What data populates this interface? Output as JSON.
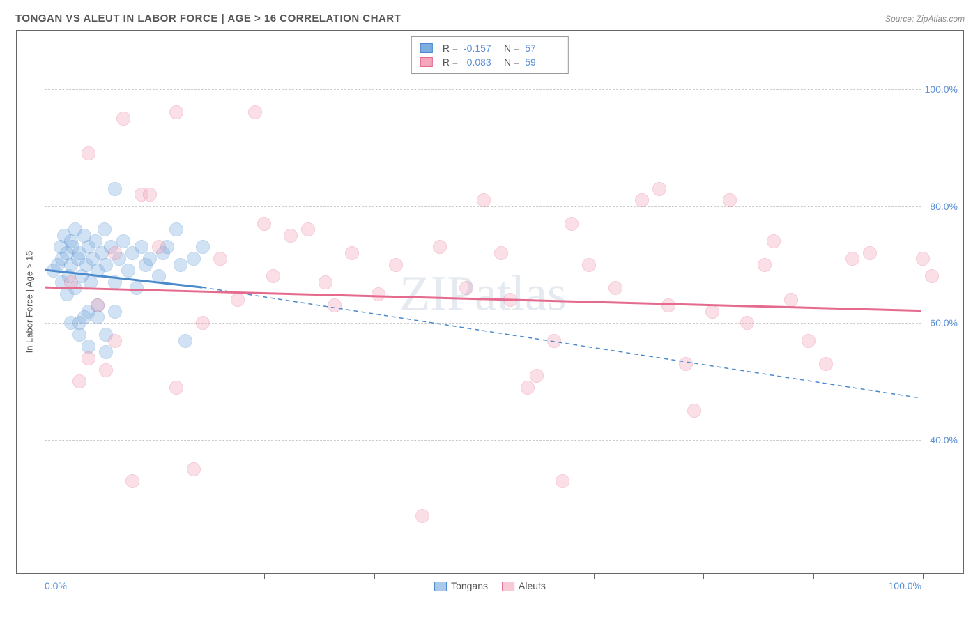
{
  "header": {
    "title": "TONGAN VS ALEUT IN LABOR FORCE | AGE > 16 CORRELATION CHART",
    "source": "Source: ZipAtlas.com"
  },
  "watermark": "ZIPatlas",
  "chart": {
    "type": "scatter",
    "y_axis_title": "In Labor Force | Age > 16",
    "xlim": [
      0,
      100
    ],
    "ylim": [
      20,
      110
    ],
    "x_labels": {
      "min": "0.0%",
      "max": "100.0%"
    },
    "y_ticks": [
      {
        "value": 40,
        "label": "40.0%"
      },
      {
        "value": 60,
        "label": "60.0%"
      },
      {
        "value": 80,
        "label": "80.0%"
      },
      {
        "value": 100,
        "label": "100.0%"
      }
    ],
    "x_tick_positions": [
      0,
      12.5,
      25,
      37.5,
      50,
      62.5,
      75,
      87.5,
      100
    ],
    "grid_color": "#cccccc",
    "background_color": "#ffffff",
    "marker_radius": 10,
    "marker_opacity": 0.35,
    "series": [
      {
        "name": "Tongans",
        "color": "#7eaee0",
        "border_color": "#4a89ca",
        "R": "-0.157",
        "N": "57",
        "trend_solid": {
          "x1": 0,
          "y1": 69,
          "x2": 18,
          "y2": 66
        },
        "trend_dashed": {
          "x1": 18,
          "y1": 66,
          "x2": 100,
          "y2": 47
        },
        "points": [
          [
            1,
            69
          ],
          [
            1.5,
            70
          ],
          [
            1.8,
            73
          ],
          [
            2,
            67
          ],
          [
            2,
            71
          ],
          [
            2.2,
            75
          ],
          [
            2.5,
            65
          ],
          [
            2.5,
            72
          ],
          [
            2.8,
            68
          ],
          [
            3,
            74
          ],
          [
            3,
            70
          ],
          [
            3.2,
            73
          ],
          [
            3.5,
            66
          ],
          [
            3.5,
            76
          ],
          [
            3.8,
            71
          ],
          [
            4,
            60
          ],
          [
            4,
            72
          ],
          [
            4.2,
            68
          ],
          [
            4.5,
            75
          ],
          [
            4.8,
            70
          ],
          [
            5,
            62
          ],
          [
            5,
            73
          ],
          [
            5.2,
            67
          ],
          [
            5.5,
            71
          ],
          [
            5.8,
            74
          ],
          [
            6,
            61
          ],
          [
            6,
            69
          ],
          [
            6.5,
            72
          ],
          [
            6.8,
            76
          ],
          [
            7,
            55
          ],
          [
            7,
            70
          ],
          [
            7.5,
            73
          ],
          [
            8,
            83
          ],
          [
            8,
            67
          ],
          [
            8.5,
            71
          ],
          [
            9,
            74
          ],
          [
            9.5,
            69
          ],
          [
            10,
            72
          ],
          [
            10.5,
            66
          ],
          [
            11,
            73
          ],
          [
            11.5,
            70
          ],
          [
            12,
            71
          ],
          [
            13,
            68
          ],
          [
            13.5,
            72
          ],
          [
            14,
            73
          ],
          [
            15,
            76
          ],
          [
            15.5,
            70
          ],
          [
            16,
            57
          ],
          [
            17,
            71
          ],
          [
            18,
            73
          ],
          [
            4,
            58
          ],
          [
            5,
            56
          ],
          [
            7,
            58
          ],
          [
            3,
            60
          ],
          [
            4.5,
            61
          ],
          [
            6,
            63
          ],
          [
            8,
            62
          ]
        ]
      },
      {
        "name": "Aleuts",
        "color": "#f4a6bb",
        "border_color": "#e56b8e",
        "R": "-0.083",
        "N": "59",
        "trend_solid": {
          "x1": 0,
          "y1": 66,
          "x2": 100,
          "y2": 62
        },
        "points": [
          [
            3,
            67
          ],
          [
            4,
            50
          ],
          [
            5,
            89
          ],
          [
            5,
            54
          ],
          [
            6,
            63
          ],
          [
            7,
            52
          ],
          [
            8,
            57
          ],
          [
            8,
            72
          ],
          [
            9,
            95
          ],
          [
            10,
            33
          ],
          [
            11,
            82
          ],
          [
            12,
            82
          ],
          [
            13,
            73
          ],
          [
            15,
            49
          ],
          [
            15,
            96
          ],
          [
            17,
            35
          ],
          [
            18,
            60
          ],
          [
            20,
            71
          ],
          [
            22,
            64
          ],
          [
            24,
            96
          ],
          [
            25,
            77
          ],
          [
            26,
            68
          ],
          [
            28,
            75
          ],
          [
            30,
            76
          ],
          [
            32,
            67
          ],
          [
            33,
            63
          ],
          [
            35,
            72
          ],
          [
            38,
            65
          ],
          [
            40,
            70
          ],
          [
            43,
            27
          ],
          [
            45,
            73
          ],
          [
            48,
            66
          ],
          [
            50,
            81
          ],
          [
            52,
            72
          ],
          [
            53,
            64
          ],
          [
            55,
            49
          ],
          [
            56,
            51
          ],
          [
            58,
            57
          ],
          [
            59,
            33
          ],
          [
            60,
            77
          ],
          [
            62,
            70
          ],
          [
            65,
            66
          ],
          [
            68,
            81
          ],
          [
            70,
            83
          ],
          [
            71,
            63
          ],
          [
            73,
            53
          ],
          [
            74,
            45
          ],
          [
            76,
            62
          ],
          [
            78,
            81
          ],
          [
            80,
            60
          ],
          [
            82,
            70
          ],
          [
            83,
            74
          ],
          [
            85,
            64
          ],
          [
            87,
            57
          ],
          [
            89,
            53
          ],
          [
            92,
            71
          ],
          [
            94,
            72
          ],
          [
            100,
            71
          ],
          [
            101,
            68
          ]
        ]
      }
    ],
    "bottom_legend": [
      {
        "label": "Tongans",
        "fill": "#a8c9ea",
        "border": "#4a89ca"
      },
      {
        "label": "Aleuts",
        "fill": "#f9c9d5",
        "border": "#e56b8e"
      }
    ]
  }
}
